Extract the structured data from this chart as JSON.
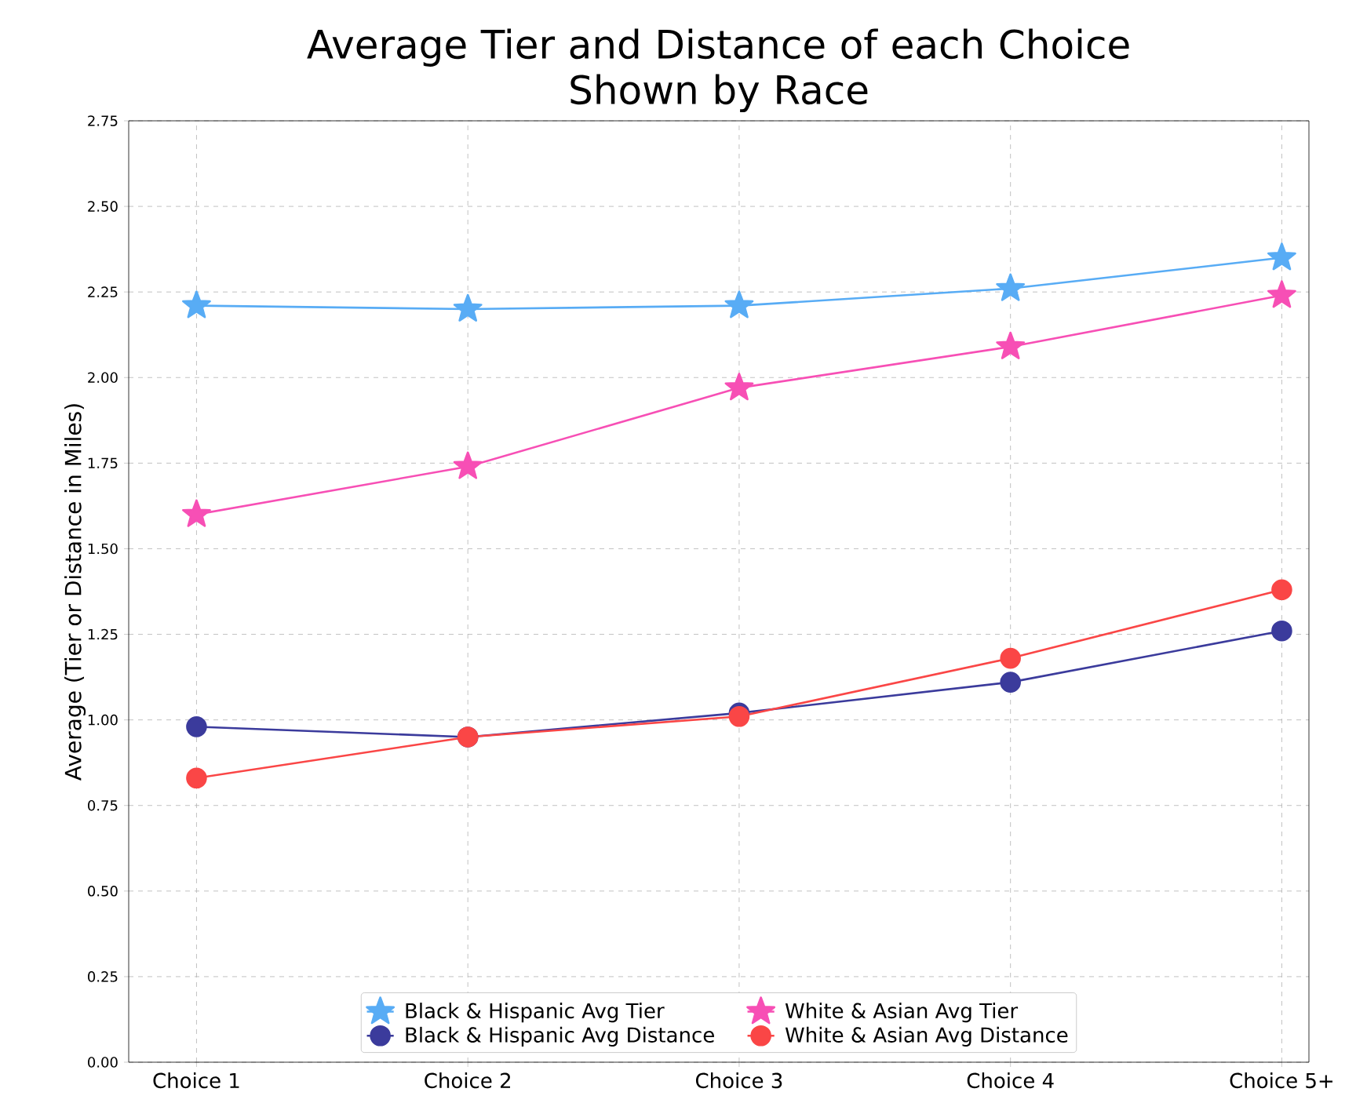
{
  "chart_data": {
    "type": "line",
    "title": "Average Tier and Distance of each Choice\nShown by Race",
    "ylabel": "Average (Tier or Distance in Miles)",
    "categories": [
      "Choice 1",
      "Choice 2",
      "Choice 3",
      "Choice 4",
      "Choice 5+"
    ],
    "series": [
      {
        "name": "Black & Hispanic Avg Tier",
        "color": "#58acf5",
        "marker": "star",
        "values": [
          2.21,
          2.2,
          2.21,
          2.26,
          2.35
        ]
      },
      {
        "name": "Black & Hispanic Avg Distance",
        "color": "#3b3b9c",
        "marker": "circle",
        "values": [
          0.98,
          0.95,
          1.02,
          1.11,
          1.26
        ]
      },
      {
        "name": "White & Asian Avg Tier",
        "color": "#f74fb5",
        "marker": "star",
        "values": [
          1.6,
          1.74,
          1.97,
          2.09,
          2.24
        ]
      },
      {
        "name": "White & Asian Avg Distance",
        "color": "#fa4646",
        "marker": "circle",
        "values": [
          0.83,
          0.95,
          1.01,
          1.18,
          1.38
        ]
      }
    ],
    "ylim": [
      0,
      2.75
    ],
    "yticks": [
      {
        "value": 0,
        "label": "0.00"
      },
      {
        "value": 0.25,
        "label": "0.25"
      },
      {
        "value": 0.5,
        "label": "0.50"
      },
      {
        "value": 0.75,
        "label": "0.75"
      },
      {
        "value": 1,
        "label": "1.00"
      },
      {
        "value": 1.25,
        "label": "1.25"
      },
      {
        "value": 1.5,
        "label": "1.50"
      },
      {
        "value": 1.75,
        "label": "1.75"
      },
      {
        "value": 2,
        "label": "2.00"
      },
      {
        "value": 2.25,
        "label": "2.25"
      },
      {
        "value": 2.5,
        "label": "2.50"
      },
      {
        "value": 2.75,
        "label": "2.75"
      }
    ],
    "grid": true,
    "legend": "bottom",
    "line_style": "solid"
  }
}
